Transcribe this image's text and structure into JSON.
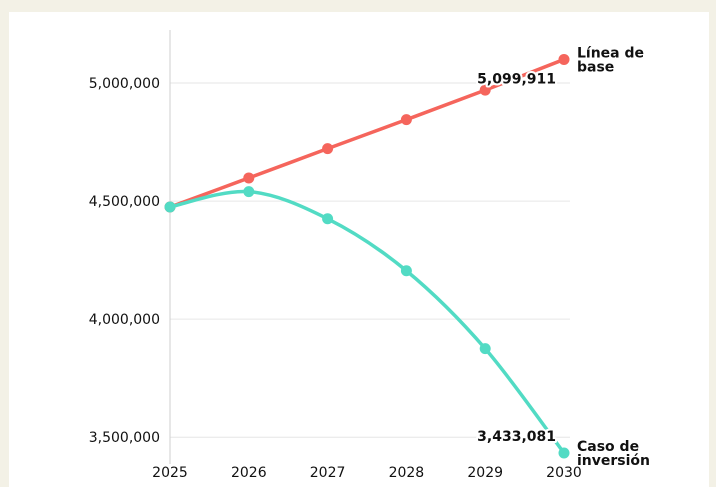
{
  "chart_data": {
    "type": "line",
    "x": [
      2025,
      2026,
      2027,
      2028,
      2029,
      2030
    ],
    "ylim": [
      3450000,
      5250000
    ],
    "y_ticks": [
      "3,500,000",
      "4,000,000",
      "4,500,000",
      "5,000,000"
    ],
    "y_tick_values": [
      3500000,
      4000000,
      4500000,
      5000000
    ],
    "x_ticks": [
      "2025",
      "2026",
      "2027",
      "2028",
      "2029",
      "2030"
    ],
    "grid": "horizontal",
    "series": [
      {
        "name_lines": [
          "Línea de",
          "base"
        ],
        "color": "#f5655c",
        "values": [
          4475000,
          4598000,
          4722000,
          4845000,
          4970000,
          5099911
        ],
        "end_value_label": "5,099,911"
      },
      {
        "name_lines": [
          "Caso de",
          "inversión"
        ],
        "color": "#52dbc4",
        "values": [
          4475000,
          4540000,
          4425000,
          4205000,
          3875000,
          3433081
        ],
        "end_value_label": "3,433,081"
      }
    ]
  }
}
